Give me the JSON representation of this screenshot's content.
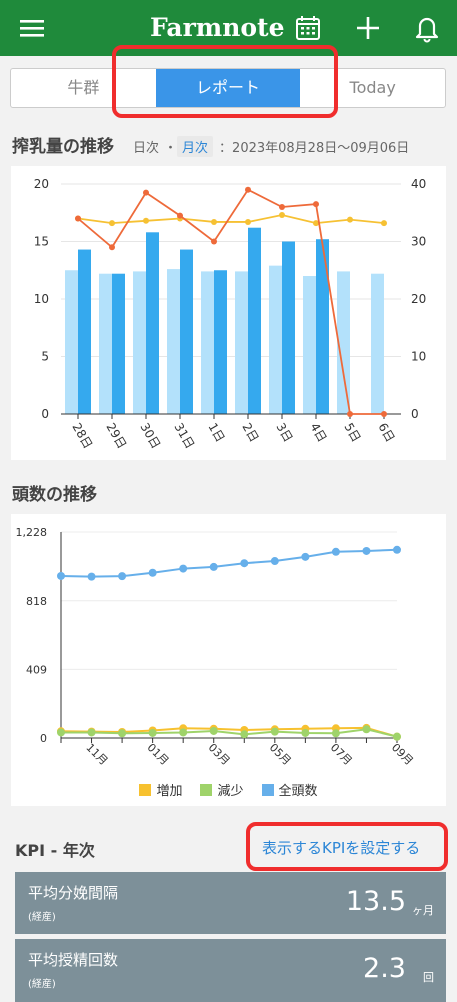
{
  "app": {
    "title": "Farmnote"
  },
  "header_icons": [
    "menu-icon",
    "calendar-icon",
    "plus-icon",
    "bell-icon"
  ],
  "tabs": [
    {
      "label": "牛群",
      "active": false
    },
    {
      "label": "レポート",
      "active": true
    },
    {
      "label": "Today",
      "active": false
    }
  ],
  "milk": {
    "title": "搾乳量の推移",
    "period_daily": "日次",
    "period_sep": "・",
    "period_monthly": "月次",
    "range": "：2023年08月28日〜09月06日"
  },
  "herd": {
    "title": "頭数の推移",
    "legend": [
      {
        "label": "増加",
        "color": "#f7c12f"
      },
      {
        "label": "減少",
        "color": "#9fd36a"
      },
      {
        "label": "全頭数",
        "color": "#66afea"
      }
    ]
  },
  "kpi": {
    "title": "KPI - 年次",
    "link": "表示するKPIを設定する",
    "items": [
      {
        "name": "平均分娩間隔",
        "sub": "(経産)",
        "value": "13.5",
        "unit": "ヶ月"
      },
      {
        "name": "平均授精回数",
        "sub": "(経産)",
        "value": "2.3",
        "unit": "回"
      }
    ]
  },
  "chart_data": [
    {
      "type": "bar",
      "categories": [
        "28日",
        "29日",
        "30日",
        "31日",
        "1日",
        "2日",
        "3日",
        "4日",
        "5日",
        "6日"
      ],
      "y_ticks_left": [
        "0",
        "5",
        "10",
        "15",
        "20"
      ],
      "y_ticks_right": [
        "0",
        "10",
        "20",
        "30",
        "40"
      ],
      "ylim": [
        0,
        20
      ],
      "y2lim": [
        0,
        40
      ],
      "series": [
        {
          "kind": "bar",
          "color": "#b3e1fb",
          "values": [
            12.5,
            12.2,
            12.4,
            12.6,
            12.4,
            12.4,
            12.9,
            12.0,
            12.4,
            12.2
          ]
        },
        {
          "kind": "bar",
          "color": "#35a9ee",
          "values": [
            14.3,
            12.2,
            15.8,
            14.3,
            12.5,
            16.2,
            15.0,
            15.2,
            null,
            null
          ]
        },
        {
          "kind": "line",
          "color": "#f6c133",
          "values": [
            17.0,
            16.6,
            16.8,
            17.0,
            16.7,
            16.7,
            17.3,
            16.6,
            16.9,
            16.6
          ]
        },
        {
          "kind": "line",
          "axis": "right",
          "color": "#ee6a3a",
          "values": [
            34.0,
            29.0,
            38.5,
            34.5,
            30.0,
            39.0,
            36.0,
            36.5,
            0,
            0
          ]
        }
      ]
    },
    {
      "type": "line",
      "x_ticks": [
        "11月",
        "01月",
        "03月",
        "05月",
        "07月",
        "09月"
      ],
      "y_ticks": [
        "0",
        "409",
        "818",
        "1,228"
      ],
      "ylim": [
        0,
        1228
      ],
      "series": [
        {
          "name": "全頭数",
          "color": "#66afea",
          "values": [
            966,
            962,
            965,
            985,
            1010,
            1020,
            1042,
            1055,
            1080,
            1110,
            1115,
            1122
          ]
        },
        {
          "name": "増加",
          "color": "#f7c12f",
          "values": [
            40,
            38,
            36,
            45,
            58,
            55,
            48,
            52,
            55,
            58,
            60,
            8
          ]
        },
        {
          "name": "減少",
          "color": "#9fd36a",
          "values": [
            33,
            33,
            28,
            30,
            33,
            42,
            22,
            38,
            30,
            28,
            52,
            8
          ]
        }
      ]
    }
  ]
}
